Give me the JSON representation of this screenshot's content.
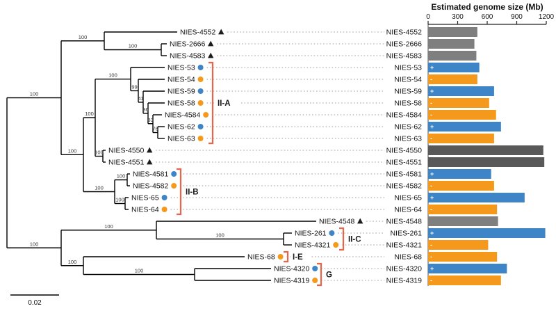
{
  "figure": {
    "description": "Maximum-likelihood phylogenetic tree of NIES strains with mating-type markers and estimated genome sizes"
  },
  "chart_data": {
    "type": "bar",
    "orientation": "horizontal",
    "title": "Estimated genome size (Mb)",
    "xlim": [
      0,
      1200
    ],
    "xticks": [
      0,
      300,
      600,
      900,
      1200
    ],
    "unit": "Mb",
    "rows": [
      {
        "label": "NIES-4552",
        "value": 500,
        "color": "gray",
        "sign": "",
        "marker": "triangle"
      },
      {
        "label": "NIES-2666",
        "value": 470,
        "color": "gray",
        "sign": "",
        "marker": "triangle"
      },
      {
        "label": "NIES-4583",
        "value": 490,
        "color": "gray",
        "sign": "",
        "marker": "triangle"
      },
      {
        "label": "NIES-53",
        "value": 520,
        "color": "blue",
        "sign": "+",
        "marker": "blue-circle"
      },
      {
        "label": "NIES-54",
        "value": 500,
        "color": "orange",
        "sign": "-",
        "marker": "orange-circle"
      },
      {
        "label": "NIES-59",
        "value": 670,
        "color": "blue",
        "sign": "+",
        "marker": "blue-circle"
      },
      {
        "label": "NIES-58",
        "value": 620,
        "color": "orange",
        "sign": "-",
        "marker": "orange-circle"
      },
      {
        "label": "NIES-4584",
        "value": 690,
        "color": "orange",
        "sign": "-",
        "marker": "orange-circle"
      },
      {
        "label": "NIES-62",
        "value": 740,
        "color": "blue",
        "sign": "+",
        "marker": "blue-circle"
      },
      {
        "label": "NIES-63",
        "value": 670,
        "color": "orange",
        "sign": "-",
        "marker": "orange-circle"
      },
      {
        "label": "NIES-4550",
        "value": 1170,
        "color": "darkgray",
        "sign": "",
        "marker": "triangle"
      },
      {
        "label": "NIES-4551",
        "value": 1180,
        "color": "darkgray",
        "sign": "",
        "marker": "triangle"
      },
      {
        "label": "NIES-4581",
        "value": 640,
        "color": "blue",
        "sign": "+",
        "marker": "blue-circle"
      },
      {
        "label": "NIES-4582",
        "value": 670,
        "color": "orange",
        "sign": "-",
        "marker": "orange-circle"
      },
      {
        "label": "NIES-65",
        "value": 980,
        "color": "blue",
        "sign": "+",
        "marker": "blue-circle"
      },
      {
        "label": "NIES-64",
        "value": 700,
        "color": "orange",
        "sign": "-",
        "marker": "orange-circle"
      },
      {
        "label": "NIES-4548",
        "value": 710,
        "color": "gray",
        "sign": "",
        "marker": "triangle"
      },
      {
        "label": "NIES-261",
        "value": 1190,
        "color": "blue",
        "sign": "+",
        "marker": "blue-circle"
      },
      {
        "label": "NIES-4321",
        "value": 610,
        "color": "orange",
        "sign": "-",
        "marker": "orange-circle"
      },
      {
        "label": "NIES-68",
        "value": 700,
        "color": "orange",
        "sign": "-",
        "marker": "orange-circle"
      },
      {
        "label": "NIES-4320",
        "value": 800,
        "color": "blue",
        "sign": "+",
        "marker": "blue-circle"
      },
      {
        "label": "NIES-4319",
        "value": 740,
        "color": "orange",
        "sign": "-",
        "marker": "orange-circle"
      }
    ]
  },
  "tree": {
    "scale_bar": {
      "label": "0.02"
    },
    "tips": {
      "NIES-4552": 255,
      "NIES-2666": 240,
      "NIES-4583": 240,
      "NIES-53": 237,
      "NIES-54": 237,
      "NIES-59": 237,
      "NIES-58": 237,
      "NIES-4584": 233,
      "NIES-62": 237,
      "NIES-63": 237,
      "NIES-4550": 152,
      "NIES-4551": 152,
      "NIES-4581": 187,
      "NIES-4582": 187,
      "NIES-65": 185,
      "NIES-64": 185,
      "NIES-4548": 455,
      "NIES-261": 420,
      "NIES-4321": 420,
      "NIES-68": 352,
      "NIES-4320": 390,
      "NIES-4319": 390
    },
    "topology": {
      "x": 10,
      "children": [
        {
          "x": 88,
          "boot": "100",
          "children": [
            {
              "x": 150,
              "boot": "100",
              "children": [
                {
                  "leaf": "NIES-4552"
                },
                {
                  "x": 232,
                  "boot": "100",
                  "children": [
                    {
                      "leaf": "NIES-2666"
                    },
                    {
                      "leaf": "NIES-4583"
                    }
                  ]
                }
              ]
            },
            {
              "x": 120,
              "boot": "100",
              "children": [
                {
                  "x": 137,
                  "boot": "100",
                  "children": [
                    {
                      "x": 188,
                      "boot": "100",
                      "children": [
                        {
                          "leaf": "NIES-53"
                        },
                        {
                          "x": 199,
                          "boot": "99",
                          "children": [
                            {
                              "leaf": "NIES-54"
                            },
                            {
                              "x": 206,
                              "boot": "41",
                              "children": [
                                {
                                  "leaf": "NIES-59"
                                },
                                {
                                  "x": 213,
                                  "boot": "36",
                                  "children": [
                                    {
                                      "leaf": "NIES-58"
                                    },
                                    {
                                      "x": 220,
                                      "boot": "33",
                                      "children": [
                                        {
                                          "leaf": "NIES-4584"
                                        },
                                        {
                                          "x": 227,
                                          "boot": "76",
                                          "children": [
                                            {
                                              "leaf": "NIES-62"
                                            },
                                            {
                                              "leaf": "NIES-63"
                                            }
                                          ]
                                        }
                                      ]
                                    }
                                  ]
                                }
                              ]
                            }
                          ]
                        }
                      ]
                    },
                    {
                      "x": 148,
                      "boot": "100",
                      "children": [
                        {
                          "leaf": "NIES-4550"
                        },
                        {
                          "leaf": "NIES-4551"
                        }
                      ]
                    }
                  ]
                },
                {
                  "x": 165,
                  "boot": "100",
                  "children": [
                    {
                      "x": 183,
                      "boot": "100",
                      "children": [
                        {
                          "leaf": "NIES-4581"
                        },
                        {
                          "leaf": "NIES-4582"
                        }
                      ]
                    },
                    {
                      "x": 180,
                      "boot": "100",
                      "children": [
                        {
                          "leaf": "NIES-65"
                        },
                        {
                          "leaf": "NIES-64"
                        }
                      ]
                    }
                  ]
                }
              ]
            }
          ]
        },
        {
          "x": 88,
          "boot": "100",
          "children": [
            {
              "x": 225,
              "boot": "100",
              "children": [
                {
                  "leaf": "NIES-4548"
                },
                {
                  "x": 408,
                  "boot": "100",
                  "children": [
                    {
                      "leaf": "NIES-261"
                    },
                    {
                      "leaf": "NIES-4321"
                    }
                  ]
                }
              ]
            },
            {
              "x": 120,
              "boot": "100",
              "children": [
                {
                  "leaf": "NIES-68"
                },
                {
                  "x": 280,
                  "boot": "100",
                  "children": [
                    {
                      "leaf": "NIES-4320"
                    },
                    {
                      "leaf": "NIES-4319"
                    }
                  ]
                }
              ]
            }
          ]
        }
      ]
    },
    "clades": [
      {
        "label": "II-A",
        "x": 306,
        "rows": [
          3,
          9
        ]
      },
      {
        "label": "II-B",
        "x": 260,
        "rows": [
          12,
          15
        ]
      },
      {
        "label": "II-C",
        "x": 494,
        "rows": [
          17,
          18
        ]
      },
      {
        "label": "I-E",
        "x": 414,
        "rows": [
          19,
          19
        ]
      },
      {
        "label": "G",
        "x": 462,
        "rows": [
          20,
          21
        ]
      }
    ]
  },
  "colors": {
    "blue": "#3d85c6",
    "orange": "#f5991d",
    "gray": "#7f7f7f",
    "darkgray": "#595959",
    "bracket": "#e8654a",
    "tree_line": "#000000",
    "leader": "#999999"
  }
}
